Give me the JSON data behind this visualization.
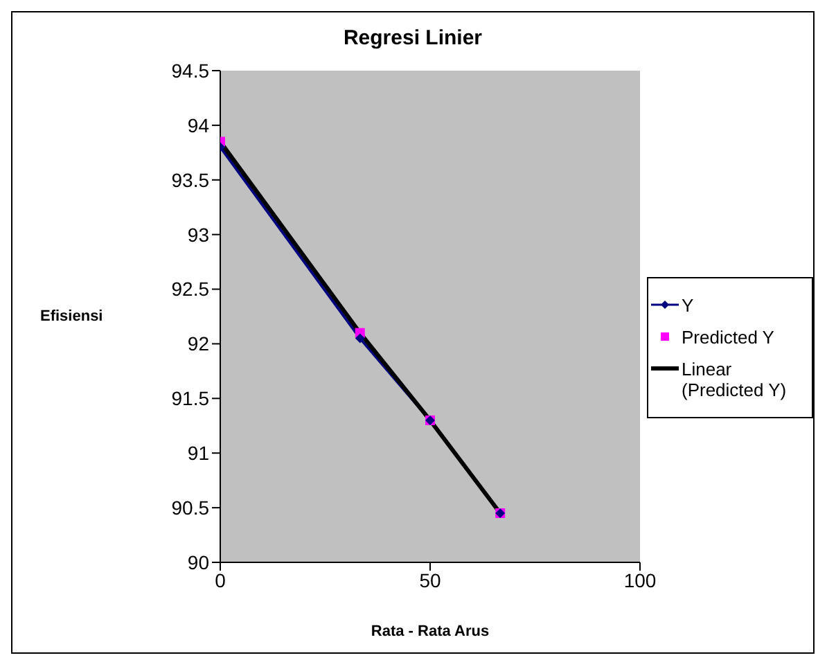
{
  "chart_data": {
    "type": "line",
    "title": "Regresi Linier",
    "xlabel": "Rata - Rata Arus",
    "ylabel": "Efisiensi",
    "x": [
      0,
      33.3,
      50,
      66.7
    ],
    "series": [
      {
        "name": "Y",
        "color": "#000080",
        "marker": "diamond",
        "values": [
          93.8,
          92.05,
          91.3,
          90.45
        ]
      },
      {
        "name": "Predicted Y",
        "type": "scatter",
        "color": "#ff00ff",
        "marker": "square",
        "values": [
          93.85,
          92.1,
          91.3,
          90.45
        ]
      },
      {
        "name": "Linear (Predicted Y)",
        "color": "#000000",
        "marker": "none",
        "values": [
          93.85,
          92.1,
          91.3,
          90.45
        ]
      }
    ],
    "xlim": [
      0,
      100
    ],
    "xticks": [
      0,
      50,
      100
    ],
    "ylim": [
      90,
      94.5
    ],
    "yticks": [
      90,
      90.5,
      91,
      91.5,
      92,
      92.5,
      93,
      93.5,
      94,
      94.5
    ],
    "grid": false,
    "legend": "right"
  }
}
